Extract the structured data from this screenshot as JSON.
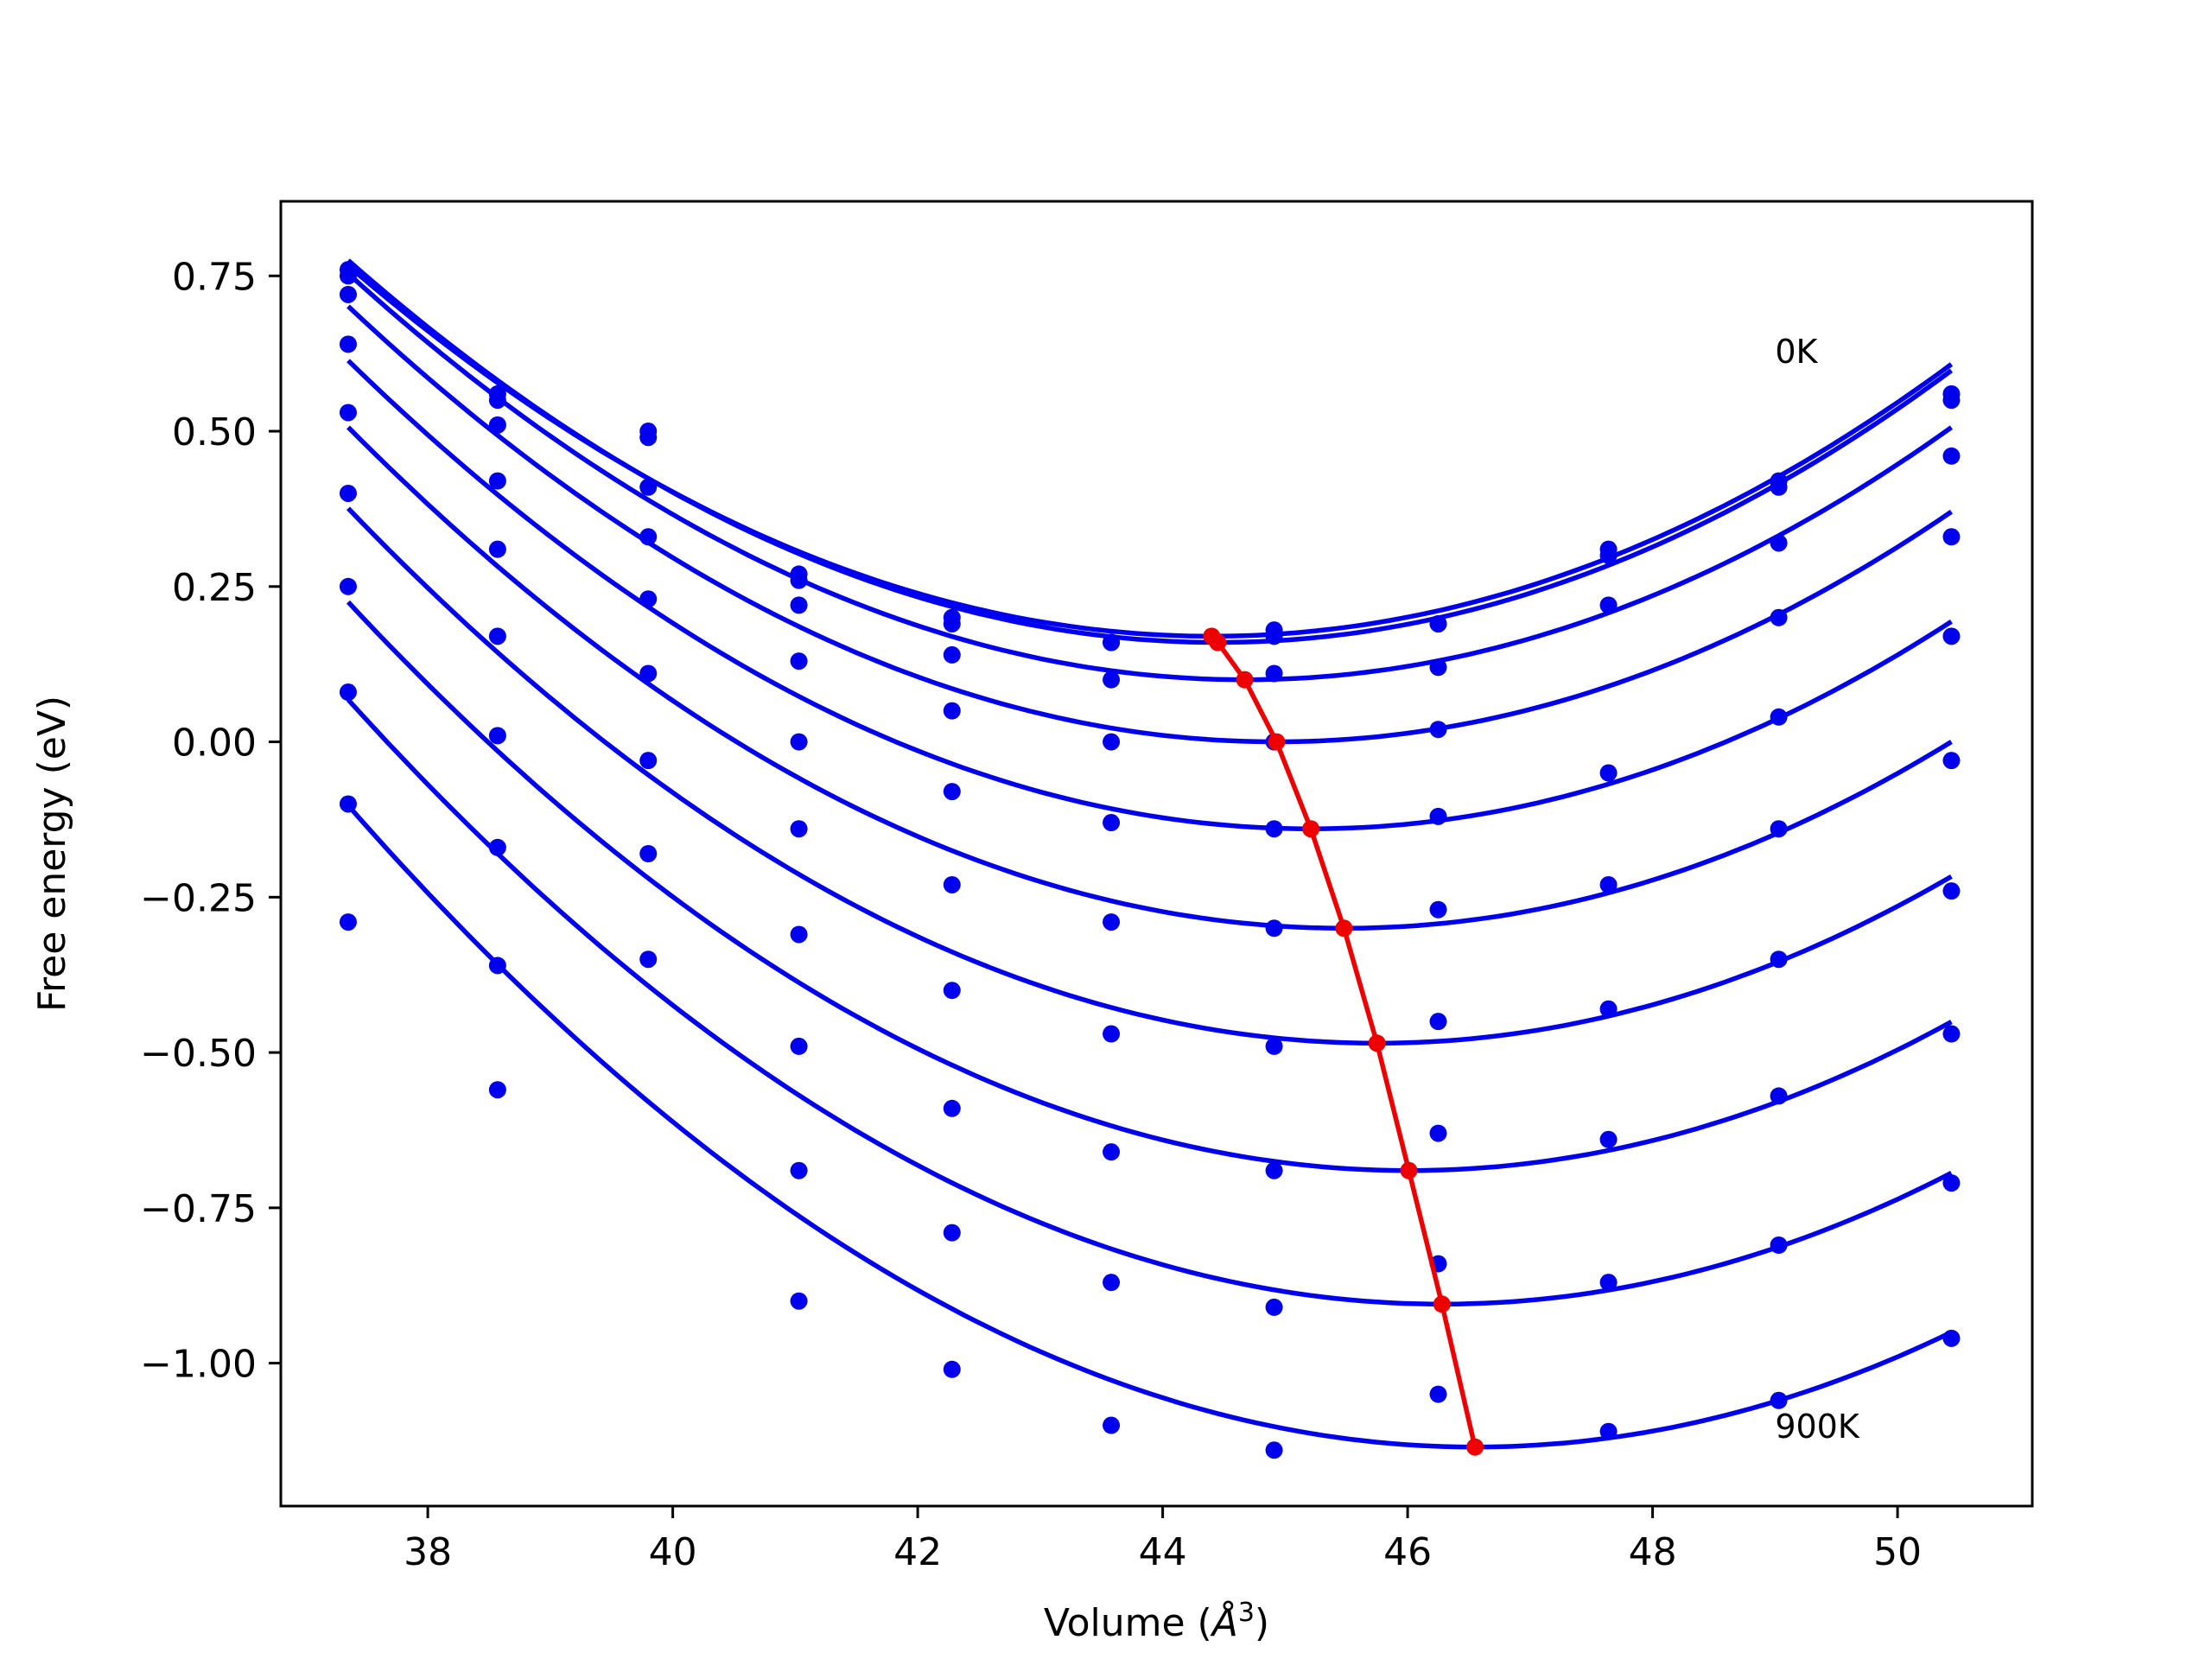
{
  "chart_data": {
    "type": "scatter",
    "title": "",
    "xlabel": "Volume",
    "xlabel_unit": "Å",
    "xlabel_unit_exp": "3",
    "ylabel": "Free energy (eV)",
    "xlim": [
      36.8,
      51.1
    ],
    "ylim": [
      -1.23,
      0.87
    ],
    "xticks": [
      38,
      40,
      42,
      44,
      46,
      48,
      50
    ],
    "yticks": [
      0.75,
      0.5,
      0.25,
      0.0,
      -0.25,
      -0.5,
      -0.75,
      -1.0
    ],
    "xtick_labels": [
      "38",
      "40",
      "42",
      "44",
      "46",
      "48",
      "50"
    ],
    "ytick_labels": [
      "0.75",
      "0.50",
      "0.25",
      "0.00",
      "−0.25",
      "−0.50",
      "−0.75",
      "−1.00"
    ],
    "grid": false,
    "legend": "none",
    "annotations": [
      {
        "text": "0K",
        "x": 49.0,
        "y": 0.61
      },
      {
        "text": "900K",
        "x": 49.0,
        "y": -1.12
      }
    ],
    "colors": {
      "points": "#0000ee",
      "fits": "#0000ee",
      "minima": "#ee0000"
    },
    "x": [
      37.35,
      38.57,
      39.8,
      41.03,
      42.28,
      43.58,
      44.91,
      46.25,
      47.64,
      49.03,
      50.44
    ],
    "series": [
      {
        "values": [
          0.76,
          0.56,
          0.5,
          0.27,
          0.2,
          0.16,
          0.18,
          0.19,
          0.31,
          0.42,
          0.56
        ],
        "fit": {
          "v0": 44.4,
          "e0": 0.17,
          "b": 0.012
        }
      },
      {
        "values": [
          0.75,
          0.55,
          0.49,
          0.26,
          0.19,
          0.16,
          0.17,
          0.19,
          0.3,
          0.41,
          0.55
        ],
        "fit": {
          "v0": 44.45,
          "e0": 0.16,
          "b": 0.0122
        }
      },
      {
        "values": [
          0.72,
          0.51,
          0.41,
          0.22,
          0.14,
          0.1,
          0.11,
          0.12,
          0.22,
          0.32,
          0.46
        ],
        "fit": {
          "v0": 44.67,
          "e0": 0.1,
          "b": 0.0122
        }
      },
      {
        "values": [
          0.64,
          0.42,
          0.33,
          0.13,
          0.05,
          0.0,
          0.0,
          0.02,
          -0.05,
          0.2,
          0.33
        ],
        "fit": {
          "v0": 44.93,
          "e0": 0.0,
          "b": 0.0122
        }
      },
      {
        "values": [
          0.53,
          0.31,
          0.23,
          0.0,
          -0.08,
          -0.13,
          -0.14,
          -0.12,
          -0.23,
          0.04,
          0.17
        ],
        "fit": {
          "v0": 45.21,
          "e0": -0.14,
          "b": 0.0122
        }
      },
      {
        "values": [
          0.4,
          0.17,
          0.11,
          -0.14,
          -0.23,
          -0.29,
          -0.3,
          -0.27,
          -0.43,
          -0.14,
          -0.03
        ],
        "fit": {
          "v0": 45.48,
          "e0": -0.3,
          "b": 0.0122
        }
      },
      {
        "values": [
          0.25,
          0.01,
          -0.03,
          -0.31,
          -0.4,
          -0.47,
          -0.49,
          -0.45,
          -0.64,
          -0.35,
          -0.24
        ],
        "fit": {
          "v0": 45.75,
          "e0": -0.485,
          "b": 0.0122
        }
      },
      {
        "values": [
          0.08,
          -0.17,
          -0.18,
          -0.49,
          -0.59,
          -0.66,
          -0.69,
          -0.63,
          -0.87,
          -0.57,
          -0.47
        ],
        "fit": {
          "v0": 46.01,
          "e0": -0.69,
          "b": 0.0122
        }
      },
      {
        "values": [
          -0.1,
          -0.36,
          -0.35,
          -0.69,
          -0.79,
          -0.87,
          -0.91,
          -0.84,
          -1.11,
          -0.81,
          -0.71
        ],
        "fit": {
          "v0": 46.28,
          "e0": -0.905,
          "b": 0.0122
        }
      },
      {
        "values": [
          -0.29,
          -0.56,
          null,
          -0.9,
          -1.01,
          -1.1,
          -1.14,
          -1.05,
          null,
          -1.06,
          -0.96
        ],
        "fit": {
          "v0": 46.55,
          "e0": -1.135,
          "b": 0.0122
        }
      }
    ],
    "minima_line": {
      "x": [
        44.4,
        44.45,
        44.67,
        44.93,
        45.21,
        45.48,
        45.75,
        46.01,
        46.28,
        46.55
      ],
      "y": [
        0.17,
        0.16,
        0.1,
        0.0,
        -0.14,
        -0.3,
        -0.485,
        -0.69,
        -0.905,
        -1.135
      ]
    }
  }
}
